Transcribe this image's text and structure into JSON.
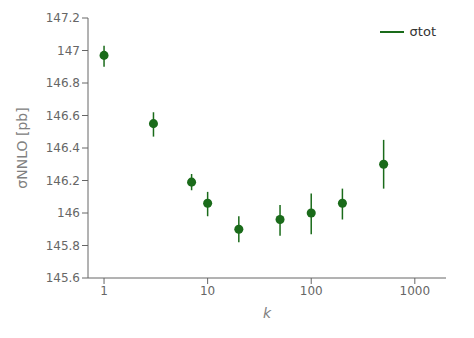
{
  "chart_data": {
    "type": "scatter",
    "x": [
      1,
      3,
      7,
      10,
      20,
      50,
      100,
      200,
      500
    ],
    "series": [
      {
        "name": "σtot",
        "color": "#1a6b1a",
        "marker": "circle",
        "values": [
          146.97,
          146.55,
          146.19,
          146.06,
          145.9,
          145.96,
          146.0,
          146.06,
          146.3
        ],
        "yerr_lo": [
          0.07,
          0.08,
          0.05,
          0.08,
          0.08,
          0.1,
          0.13,
          0.1,
          0.15
        ],
        "yerr_hi": [
          0.06,
          0.07,
          0.05,
          0.07,
          0.08,
          0.09,
          0.12,
          0.09,
          0.15
        ]
      }
    ],
    "xlabel": "k",
    "ylabel": "σNNLO [pb]",
    "log": "x",
    "xlim": [
      0.7,
      2000
    ],
    "xticks": [
      1,
      10,
      100,
      1000
    ],
    "ylim": [
      145.6,
      147.2
    ],
    "yticks": [
      145.6,
      145.8,
      146,
      146.2,
      146.4,
      146.6,
      146.8,
      147,
      147.2
    ],
    "legend": "upper right",
    "grid": false
  }
}
